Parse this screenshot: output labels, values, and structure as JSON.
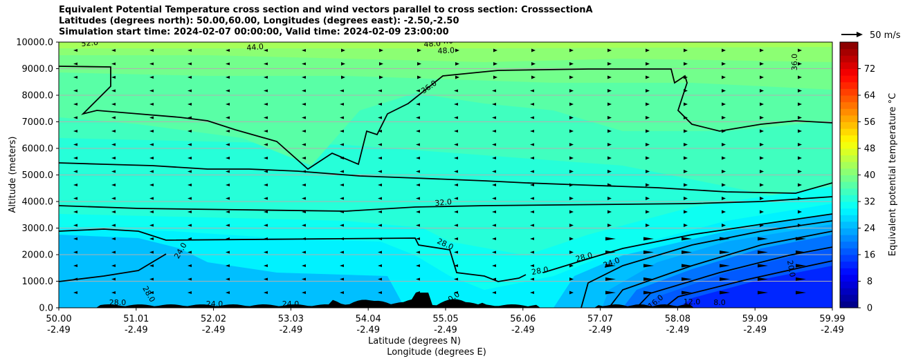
{
  "chart_data": {
    "type": "heatmap",
    "title_lines": [
      "Equivalent Potential Temperature cross section and wind vectors parallel to cross section: CrosssectionA",
      "Latitudes (degrees north): 50.00,60.00, Longitudes (degrees east): -2.50,-2.50",
      "Simulation start time: 2024-02-07 00:00:00, Valid time: 2024-02-09 23:00:00"
    ],
    "ylabel": "Altitude (meters)",
    "xlabel_lines": [
      "Latitude (degrees N)",
      "Longitude (degrees E)"
    ],
    "ylim": [
      0,
      10000
    ],
    "y_ticks": [
      "0.0",
      "1000.0",
      "2000.0",
      "3000.0",
      "4000.0",
      "5000.0",
      "6000.0",
      "7000.0",
      "8000.0",
      "9000.0",
      "10000.0"
    ],
    "x_ticks": [
      {
        "lat": "50.00",
        "lon": "-2.49"
      },
      {
        "lat": "51.01",
        "lon": "-2.49"
      },
      {
        "lat": "52.02",
        "lon": "-2.49"
      },
      {
        "lat": "53.03",
        "lon": "-2.49"
      },
      {
        "lat": "54.04",
        "lon": "-2.49"
      },
      {
        "lat": "55.05",
        "lon": "-2.49"
      },
      {
        "lat": "56.06",
        "lon": "-2.49"
      },
      {
        "lat": "57.07",
        "lon": "-2.49"
      },
      {
        "lat": "58.08",
        "lon": "-2.49"
      },
      {
        "lat": "59.09",
        "lon": "-2.49"
      },
      {
        "lat": "59.99",
        "lon": "-2.49"
      }
    ],
    "colorbar": {
      "label": "Equivalent potential temperature °C",
      "min": 0,
      "max": 80,
      "ticks": [
        "0",
        "8",
        "16",
        "24",
        "32",
        "40",
        "48",
        "56",
        "64",
        "72"
      ]
    },
    "quiver_key": "50 m/s",
    "contour_labels": [
      "52.0",
      "44.0",
      "48.0",
      "48.0",
      "44.0",
      "36.0",
      "36.0",
      "32.0",
      "28.0",
      "28.0",
      "28.0",
      "24.0",
      "24.0",
      "28.0",
      "28.0",
      "24.0",
      "24.0",
      "20.0",
      "16.0",
      "12.0",
      "8.0",
      "0.0"
    ],
    "grid": true
  }
}
